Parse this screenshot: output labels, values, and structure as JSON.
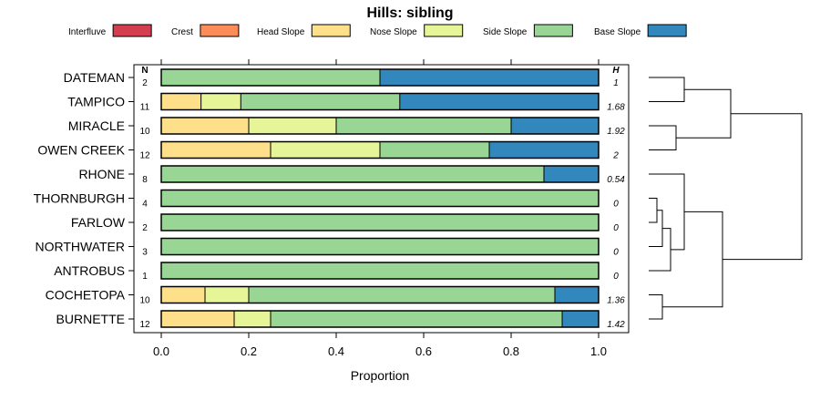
{
  "chart_data": {
    "type": "bar",
    "orientation": "horizontal-stacked",
    "title": "Hills: sibling",
    "xlabel": "Proportion",
    "ylabel": "",
    "xlim": [
      0,
      1
    ],
    "x_ticks": [
      "0.0",
      "0.2",
      "0.4",
      "0.6",
      "0.8",
      "1.0"
    ],
    "x_tick_values": [
      0,
      0.2,
      0.4,
      0.6,
      0.8,
      1.0
    ],
    "n_header": "N",
    "h_header": "H",
    "legend": [
      {
        "name": "Interfluve",
        "color": "#d53e4f"
      },
      {
        "name": "Crest",
        "color": "#fc8d59"
      },
      {
        "name": "Head Slope",
        "color": "#fee08b"
      },
      {
        "name": "Nose Slope",
        "color": "#e6f598"
      },
      {
        "name": "Side Slope",
        "color": "#99d594"
      },
      {
        "name": "Base Slope",
        "color": "#3288bd"
      }
    ],
    "categories": [
      "DATEMAN",
      "TAMPICO",
      "MIRACLE",
      "OWEN CREEK",
      "RHONE",
      "THORNBURGH",
      "FARLOW",
      "NORTHWATER",
      "ANTROBUS",
      "COCHETOPA",
      "BURNETTE"
    ],
    "n_values": [
      "2",
      "11",
      "10",
      "12",
      "8",
      "4",
      "2",
      "3",
      "1",
      "10",
      "12"
    ],
    "h_values": [
      "1",
      "1.68",
      "1.92",
      "2",
      "0.54",
      "0",
      "0",
      "0",
      "0",
      "1.36",
      "1.42"
    ],
    "series": [
      {
        "name": "Interfluve",
        "values": [
          0,
          0,
          0,
          0,
          0,
          0,
          0,
          0,
          0,
          0,
          0
        ]
      },
      {
        "name": "Crest",
        "values": [
          0,
          0,
          0,
          0,
          0,
          0,
          0,
          0,
          0,
          0,
          0
        ]
      },
      {
        "name": "Head Slope",
        "values": [
          0,
          0.0909,
          0.2,
          0.25,
          0,
          0,
          0,
          0,
          0,
          0.1,
          0.1667
        ]
      },
      {
        "name": "Nose Slope",
        "values": [
          0,
          0.0909,
          0.2,
          0.25,
          0,
          0,
          0,
          0,
          0,
          0.1,
          0.0833
        ]
      },
      {
        "name": "Side Slope",
        "values": [
          0.5,
          0.3636,
          0.4,
          0.25,
          0.875,
          1,
          1,
          1,
          1,
          0.7,
          0.6667
        ]
      },
      {
        "name": "Base Slope",
        "values": [
          0.5,
          0.4545,
          0.2,
          0.25,
          0.125,
          0,
          0,
          0,
          0,
          0.1,
          0.0833
        ]
      }
    ],
    "dendrogram": {
      "leaf_order": [
        "DATEMAN",
        "TAMPICO",
        "MIRACLE",
        "OWEN CREEK",
        "RHONE",
        "THORNBURGH",
        "FARLOW",
        "NORTHWATER",
        "ANTROBUS",
        "COCHETOPA",
        "BURNETTE"
      ],
      "merges": [
        {
          "left": "DATEMAN",
          "right": "TAMPICO",
          "height": 0.65
        },
        {
          "left": "MIRACLE",
          "right": "OWEN CREEK",
          "height": 0.5
        },
        {
          "left": 0,
          "right": 1,
          "height": 1.5
        },
        {
          "left": "THORNBURGH",
          "right": "FARLOW",
          "height": 0.15
        },
        {
          "left": 3,
          "right": "NORTHWATER",
          "height": 0.25
        },
        {
          "left": 4,
          "right": "ANTROBUS",
          "height": 0.4
        },
        {
          "left": "RHONE",
          "right": 5,
          "height": 0.65
        },
        {
          "left": "COCHETOPA",
          "right": "BURNETTE",
          "height": 0.25
        },
        {
          "left": 6,
          "right": 7,
          "height": 1.35
        },
        {
          "left": 2,
          "right": 8,
          "height": 2.8
        }
      ],
      "max_height": 3
    }
  }
}
